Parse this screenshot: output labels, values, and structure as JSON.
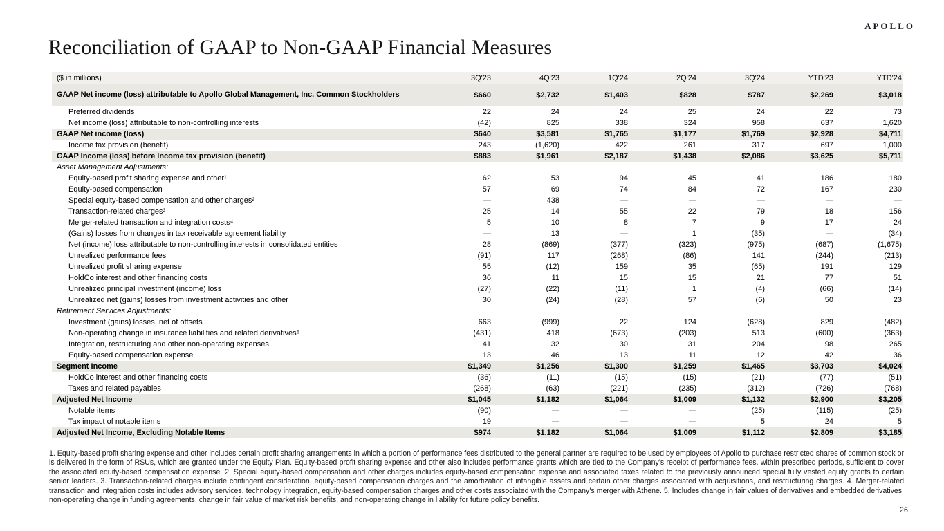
{
  "brand": {
    "logo_text": "APOLLO"
  },
  "page": {
    "title": "Reconciliation of GAAP to Non-GAAP Financial Measures",
    "page_number": "26"
  },
  "table": {
    "unit_label": "($ in millions)",
    "columns": [
      "3Q'23",
      "4Q'23",
      "1Q'24",
      "2Q'24",
      "3Q'24",
      "YTD'23",
      "YTD'24"
    ],
    "rows": [
      {
        "label": "GAAP Net income (loss) attributable to Apollo Global Management, Inc. Common Stockholders",
        "type": "total tall",
        "values": [
          "$660",
          "$2,732",
          "$1,403",
          "$828",
          "$787",
          "$2,269",
          "$3,018"
        ]
      },
      {
        "label": "Preferred dividends",
        "type": "item",
        "values": [
          "22",
          "24",
          "24",
          "25",
          "24",
          "22",
          "73"
        ]
      },
      {
        "label": "Net income (loss) attributable to non-controlling interests",
        "type": "item",
        "values": [
          "(42)",
          "825",
          "338",
          "324",
          "958",
          "637",
          "1,620"
        ]
      },
      {
        "label": "GAAP Net income (loss)",
        "type": "total",
        "values": [
          "$640",
          "$3,581",
          "$1,765",
          "$1,177",
          "$1,769",
          "$2,928",
          "$4,711"
        ]
      },
      {
        "label": "Income tax provision (benefit)",
        "type": "item",
        "values": [
          "243",
          "(1,620)",
          "422",
          "261",
          "317",
          "697",
          "1,000"
        ]
      },
      {
        "label": "GAAP Income (loss) before Income tax provision (benefit)",
        "type": "total",
        "values": [
          "$883",
          "$1,961",
          "$2,187",
          "$1,438",
          "$2,086",
          "$3,625",
          "$5,711"
        ]
      },
      {
        "label": "Asset Management Adjustments:",
        "type": "section",
        "values": [
          "",
          "",
          "",
          "",
          "",
          "",
          ""
        ]
      },
      {
        "label": "Equity-based profit sharing expense and other¹",
        "type": "item",
        "values": [
          "62",
          "53",
          "94",
          "45",
          "41",
          "186",
          "180"
        ]
      },
      {
        "label": "Equity-based compensation",
        "type": "item",
        "values": [
          "57",
          "69",
          "74",
          "84",
          "72",
          "167",
          "230"
        ]
      },
      {
        "label": "Special equity-based compensation and other charges²",
        "type": "item",
        "values": [
          "—",
          "438",
          "—",
          "—",
          "—",
          "—",
          "—"
        ]
      },
      {
        "label": "Transaction-related charges³",
        "type": "item",
        "values": [
          "25",
          "14",
          "55",
          "22",
          "79",
          "18",
          "156"
        ]
      },
      {
        "label": "Merger-related transaction and integration costs⁴",
        "type": "item",
        "values": [
          "5",
          "10",
          "8",
          "7",
          "9",
          "17",
          "24"
        ]
      },
      {
        "label": "(Gains) losses from changes in tax receivable agreement liability",
        "type": "item",
        "values": [
          "—",
          "13",
          "—",
          "1",
          "(35)",
          "—",
          "(34)"
        ]
      },
      {
        "label": "Net (income) loss attributable to non-controlling interests in consolidated entities",
        "type": "item",
        "values": [
          "28",
          "(869)",
          "(377)",
          "(323)",
          "(975)",
          "(687)",
          "(1,675)"
        ]
      },
      {
        "label": "Unrealized performance fees",
        "type": "item",
        "values": [
          "(91)",
          "117",
          "(268)",
          "(86)",
          "141",
          "(244)",
          "(213)"
        ]
      },
      {
        "label": "Unrealized profit sharing expense",
        "type": "item",
        "values": [
          "55",
          "(12)",
          "159",
          "35",
          "(65)",
          "191",
          "129"
        ]
      },
      {
        "label": "HoldCo interest and other financing costs",
        "type": "item",
        "values": [
          "36",
          "11",
          "15",
          "15",
          "21",
          "77",
          "51"
        ]
      },
      {
        "label": "Unrealized principal investment (income) loss",
        "type": "item",
        "values": [
          "(27)",
          "(22)",
          "(11)",
          "1",
          "(4)",
          "(66)",
          "(14)"
        ]
      },
      {
        "label": "Unrealized net (gains) losses from investment activities and other",
        "type": "item",
        "values": [
          "30",
          "(24)",
          "(28)",
          "57",
          "(6)",
          "50",
          "23"
        ]
      },
      {
        "label": "Retirement Services Adjustments:",
        "type": "section",
        "values": [
          "",
          "",
          "",
          "",
          "",
          "",
          ""
        ]
      },
      {
        "label": "Investment (gains) losses, net of offsets",
        "type": "item",
        "values": [
          "663",
          "(999)",
          "22",
          "124",
          "(628)",
          "829",
          "(482)"
        ]
      },
      {
        "label": "Non-operating change in insurance liabilities and related derivatives⁵",
        "type": "item",
        "values": [
          "(431)",
          "418",
          "(673)",
          "(203)",
          "513",
          "(600)",
          "(363)"
        ]
      },
      {
        "label": "Integration, restructuring and other non-operating expenses",
        "type": "item",
        "values": [
          "41",
          "32",
          "30",
          "31",
          "204",
          "98",
          "265"
        ]
      },
      {
        "label": "Equity-based compensation expense",
        "type": "item",
        "values": [
          "13",
          "46",
          "13",
          "11",
          "12",
          "42",
          "36"
        ]
      },
      {
        "label": "Segment Income",
        "type": "total",
        "values": [
          "$1,349",
          "$1,256",
          "$1,300",
          "$1,259",
          "$1,465",
          "$3,703",
          "$4,024"
        ]
      },
      {
        "label": "HoldCo interest and other financing costs",
        "type": "item",
        "values": [
          "(36)",
          "(11)",
          "(15)",
          "(15)",
          "(21)",
          "(77)",
          "(51)"
        ]
      },
      {
        "label": "Taxes and related payables",
        "type": "item",
        "values": [
          "(268)",
          "(63)",
          "(221)",
          "(235)",
          "(312)",
          "(726)",
          "(768)"
        ]
      },
      {
        "label": "Adjusted Net Income",
        "type": "total",
        "values": [
          "$1,045",
          "$1,182",
          "$1,064",
          "$1,009",
          "$1,132",
          "$2,900",
          "$3,205"
        ]
      },
      {
        "label": "Notable items",
        "type": "item",
        "values": [
          "(90)",
          "—",
          "—",
          "—",
          "(25)",
          "(115)",
          "(25)"
        ]
      },
      {
        "label": "Tax impact of notable items",
        "type": "item",
        "values": [
          "19",
          "—",
          "—",
          "—",
          "5",
          "24",
          "5"
        ]
      },
      {
        "label": "Adjusted Net Income, Excluding Notable Items",
        "type": "total",
        "values": [
          "$974",
          "$1,182",
          "$1,064",
          "$1,009",
          "$1,112",
          "$2,809",
          "$3,185"
        ]
      }
    ]
  },
  "footnotes": {
    "text": "1. Equity-based profit sharing expense and other includes certain profit sharing arrangements in which a portion of performance fees distributed to the general partner are required to be used by employees of Apollo to purchase restricted shares of common stock or is delivered in the form of RSUs, which are granted under the Equity Plan. Equity-based profit sharing expense and other also includes performance grants which are tied to the Company's receipt of performance fees, within prescribed periods, sufficient to cover the associated equity-based compensation expense. 2. Special equity-based compensation and other charges includes equity-based compensation expense and associated taxes related to the previously announced special fully vested equity grants to certain senior leaders. 3. Transaction-related charges include contingent consideration, equity-based compensation charges and the amortization of intangible assets and certain other charges associated with acquisitions, and restructuring charges. 4. Merger-related transaction and integration costs includes advisory services, technology integration, equity-based compensation charges and other costs associated with the Company's merger with Athene. 5. Includes change in fair values of derivatives and embedded derivatives, non-operating change in funding agreements, change in fair value of market risk benefits, and non-operating change in liability for future policy benefits."
  },
  "colors": {
    "total_row_shade": "#e9e8e3",
    "header_row_shade": "#f1f0ec"
  }
}
